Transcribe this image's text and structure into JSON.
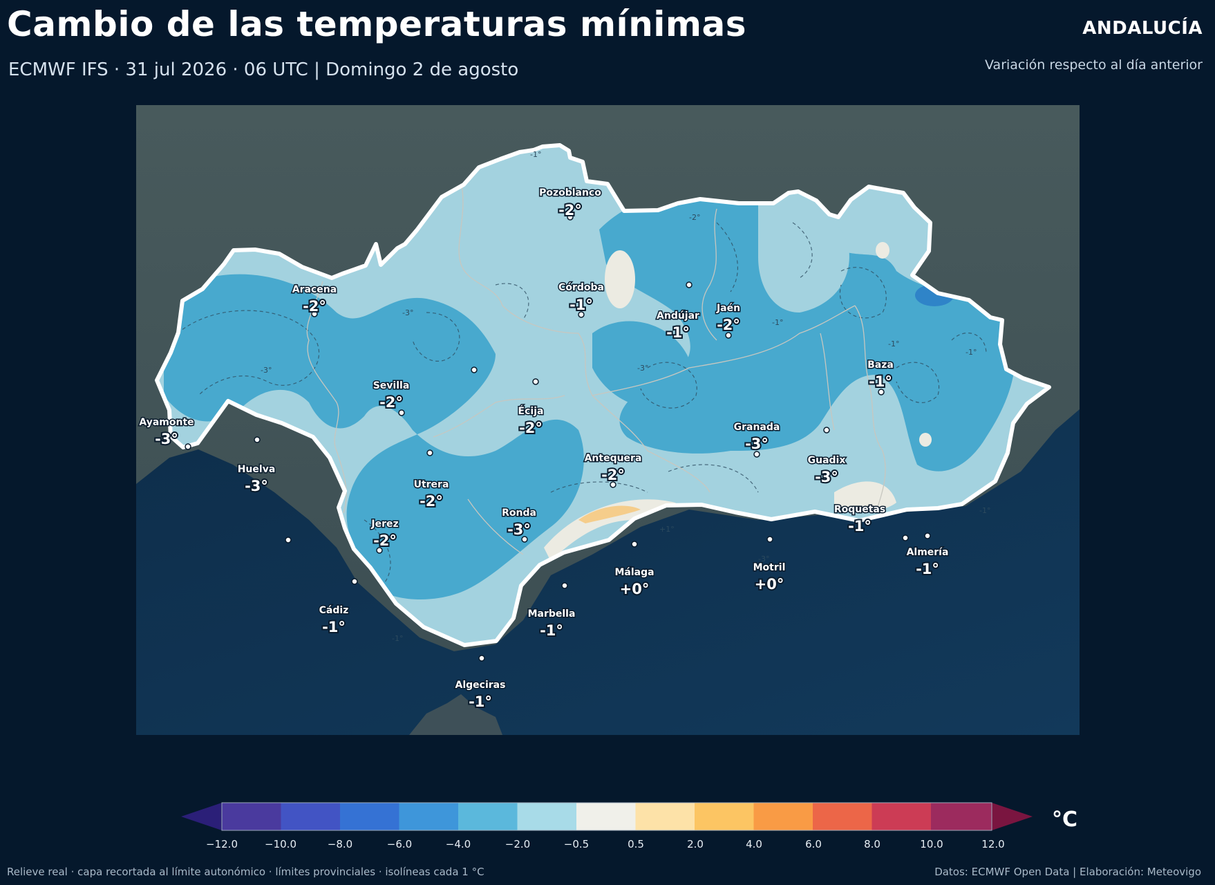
{
  "header": {
    "title": "Cambio de las temperaturas mínimas",
    "subtitle": "ECMWF IFS · 31 jul 2026 · 06 UTC  |  Domingo 2 de agosto",
    "region": "ANDALUCÍA",
    "variation_note": "Variación respecto al día anterior"
  },
  "map": {
    "isoline_labels": [
      "-1°",
      "-2°",
      "-3°",
      "+1°"
    ],
    "cities": [
      {
        "name": "Pozoblanco",
        "value": "-2°"
      },
      {
        "name": "Aracena",
        "value": "-2°"
      },
      {
        "name": "Córdoba",
        "value": "-1°"
      },
      {
        "name": "Andújar",
        "value": "-1°"
      },
      {
        "name": "Jaén",
        "value": "-2°"
      },
      {
        "name": "Baza",
        "value": "-1°"
      },
      {
        "name": "Sevilla",
        "value": "-2°"
      },
      {
        "name": "Écija",
        "value": "-2°"
      },
      {
        "name": "Ayamonte",
        "value": "-3°"
      },
      {
        "name": "Granada",
        "value": "-3°"
      },
      {
        "name": "Huelva",
        "value": "-3°"
      },
      {
        "name": "Antequera",
        "value": "-2°"
      },
      {
        "name": "Guadix",
        "value": "-3°"
      },
      {
        "name": "Utrera",
        "value": "-2°"
      },
      {
        "name": "Roquetas",
        "value": "-1°"
      },
      {
        "name": "Ronda",
        "value": "-3°"
      },
      {
        "name": "Jerez",
        "value": "-2°"
      },
      {
        "name": "Almería",
        "value": "-1°"
      },
      {
        "name": "Málaga",
        "value": "+0°"
      },
      {
        "name": "Motril",
        "value": "+0°"
      },
      {
        "name": "Cádiz",
        "value": "-1°"
      },
      {
        "name": "Marbella",
        "value": "-1°"
      },
      {
        "name": "Algeciras",
        "value": "-1°"
      }
    ]
  },
  "colorbar": {
    "unit": "°C",
    "ticks": [
      "−12.0",
      "−10.0",
      "−8.0",
      "−6.0",
      "−4.0",
      "−2.0",
      "−0.5",
      "0.5",
      "2.0",
      "4.0",
      "6.0",
      "8.0",
      "10.0",
      "12.0"
    ],
    "under_color": "#2b1f78",
    "over_color": "#7a1540",
    "colors": [
      "#4a3a9e",
      "#4254c4",
      "#3572d4",
      "#3e96da",
      "#5bb8dc",
      "#a8dbe8",
      "#f0f0ea",
      "#fde2a8",
      "#fcc563",
      "#f99b45",
      "#ec6648",
      "#cc3c55",
      "#9c2b5e"
    ]
  },
  "footer": {
    "left": "Relieve real · capa recortada al límite autonómico · límites provinciales · isolíneas cada 1 °C",
    "right": "Datos: ECMWF Open Data | Elaboración: Meteovigo"
  }
}
